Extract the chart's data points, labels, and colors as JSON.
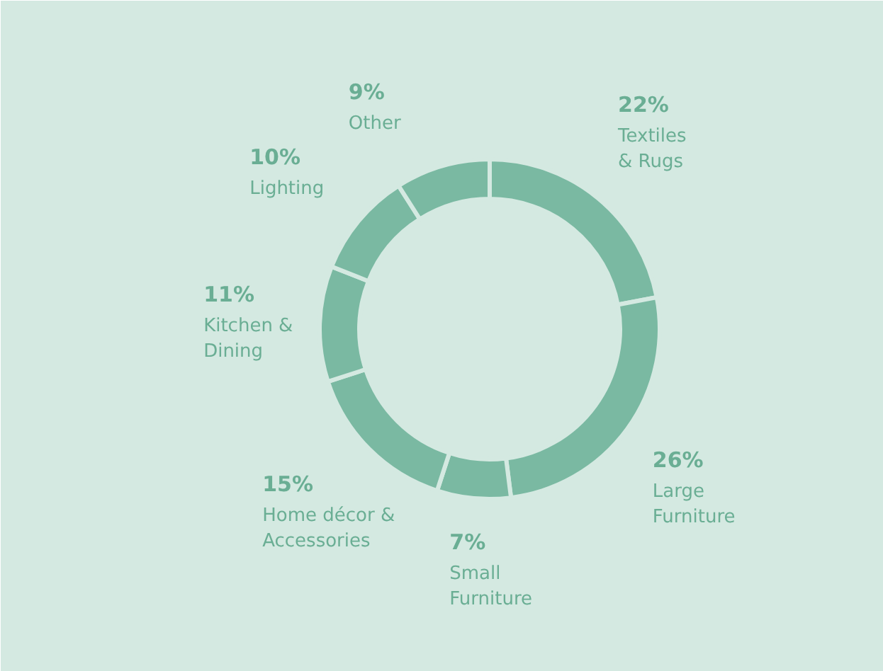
{
  "chart_data": {
    "type": "donut",
    "categories": [
      "Textiles\n& Rugs",
      "Large\nFurniture",
      "Small\nFurniture",
      "Home décor &\nAccessories",
      "Kitchen &\nDining",
      "Lighting",
      "Other"
    ],
    "values": [
      22,
      26,
      7,
      15,
      11,
      10,
      9
    ],
    "value_labels": [
      "22%",
      "26%",
      "7%",
      "15%",
      "11%",
      "10%",
      "9%"
    ],
    "colors": [
      "#7ab9a2",
      "#7ab9a2",
      "#7ab9a2",
      "#7ab9a2",
      "#7ab9a2",
      "#7ab9a2",
      "#7ab9a2"
    ]
  }
}
